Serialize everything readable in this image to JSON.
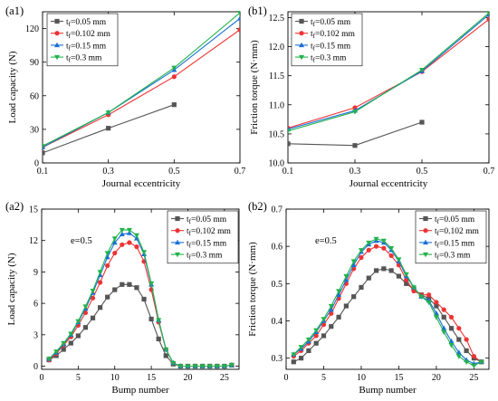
{
  "chart_data": [
    {
      "type": "line",
      "panel_label": "(a1)",
      "xlabel": "Journal eccentricity",
      "ylabel": "Load capacity (N)",
      "xlim": [
        0.1,
        0.7
      ],
      "ylim": [
        0,
        135
      ],
      "xticks": [
        0.1,
        0.3,
        0.5,
        0.7
      ],
      "yticks": [
        0,
        30,
        60,
        90,
        120
      ],
      "legend_position": "top-left",
      "annotation": "",
      "series": [
        {
          "name": "0.05 mm",
          "color": "#555555",
          "marker": "square",
          "x": [
            0.1,
            0.3,
            0.5
          ],
          "y": [
            9,
            31,
            52
          ]
        },
        {
          "name": "0.102 mm",
          "color": "#ee3333",
          "marker": "circle",
          "x": [
            0.1,
            0.3,
            0.5,
            0.7
          ],
          "y": [
            14,
            43,
            77,
            119
          ]
        },
        {
          "name": "0.15 mm",
          "color": "#1a6fd6",
          "marker": "triangle-up",
          "x": [
            0.1,
            0.3,
            0.5,
            0.7
          ],
          "y": [
            14,
            45,
            83,
            129
          ]
        },
        {
          "name": "0.3 mm",
          "color": "#22b24c",
          "marker": "triangle-down",
          "x": [
            0.1,
            0.3,
            0.5,
            0.7
          ],
          "y": [
            15,
            45,
            85,
            134
          ]
        }
      ]
    },
    {
      "type": "line",
      "panel_label": "(b1)",
      "xlabel": "Journal eccentricity",
      "ylabel": "Friction torque (N·mm)",
      "xlim": [
        0.1,
        0.7
      ],
      "ylim": [
        10.0,
        12.6
      ],
      "xticks": [
        0.1,
        0.3,
        0.5,
        0.7
      ],
      "yticks": [
        10.0,
        10.5,
        11.0,
        11.5,
        12.0,
        12.5
      ],
      "legend_position": "top-left",
      "annotation": "",
      "series": [
        {
          "name": "0.05 mm",
          "color": "#555555",
          "marker": "square",
          "x": [
            0.1,
            0.3,
            0.5
          ],
          "y": [
            10.33,
            10.3,
            10.7
          ]
        },
        {
          "name": "0.102 mm",
          "color": "#ee3333",
          "marker": "circle",
          "x": [
            0.1,
            0.3,
            0.5,
            0.7
          ],
          "y": [
            10.6,
            10.95,
            11.57,
            12.47
          ]
        },
        {
          "name": "0.15 mm",
          "color": "#1a6fd6",
          "marker": "triangle-up",
          "x": [
            0.1,
            0.3,
            0.5,
            0.7
          ],
          "y": [
            10.58,
            10.9,
            11.58,
            12.55
          ]
        },
        {
          "name": "0.3 mm",
          "color": "#22b24c",
          "marker": "triangle-down",
          "x": [
            0.1,
            0.3,
            0.5,
            0.7
          ],
          "y": [
            10.55,
            10.88,
            11.6,
            12.58
          ]
        }
      ]
    },
    {
      "type": "line",
      "panel_label": "(a2)",
      "xlabel": "Bump number",
      "ylabel": "Load capacity (N)",
      "xlim": [
        0,
        27
      ],
      "ylim": [
        -0.3,
        15
      ],
      "xticks": [
        0,
        5,
        10,
        15,
        20,
        25
      ],
      "yticks": [
        0,
        3,
        6,
        9,
        12,
        15
      ],
      "legend_position": "top-right",
      "annotation": "e=0.5",
      "x": [
        1,
        2,
        3,
        4,
        5,
        6,
        7,
        8,
        9,
        10,
        11,
        12,
        13,
        14,
        15,
        16,
        17,
        18,
        19,
        20,
        21,
        22,
        23,
        24,
        25,
        26
      ],
      "series": [
        {
          "name": "0.05 mm",
          "color": "#555555",
          "marker": "square",
          "y": [
            0.6,
            1.0,
            1.6,
            2.2,
            2.9,
            3.7,
            4.6,
            5.6,
            6.6,
            7.3,
            7.8,
            7.8,
            7.5,
            6.4,
            4.5,
            2.6,
            1.0,
            0.2,
            0.0,
            0.0,
            0.0,
            0.0,
            0.0,
            0.0,
            0.0,
            0.1
          ]
        },
        {
          "name": "0.102 mm",
          "color": "#ee3333",
          "marker": "circle",
          "y": [
            0.6,
            1.2,
            2.0,
            2.8,
            3.9,
            5.1,
            6.5,
            8.0,
            9.6,
            10.8,
            11.6,
            11.8,
            11.4,
            10.0,
            7.3,
            4.2,
            1.6,
            0.3,
            0.0,
            0.0,
            0.0,
            0.0,
            0.0,
            0.0,
            0.0,
            0.1
          ]
        },
        {
          "name": "0.15 mm",
          "color": "#1a6fd6",
          "marker": "triangle-up",
          "y": [
            0.7,
            1.3,
            2.1,
            3.0,
            4.2,
            5.5,
            7.0,
            8.7,
            10.4,
            11.8,
            12.6,
            12.7,
            12.2,
            10.7,
            7.8,
            4.4,
            1.6,
            0.3,
            0.0,
            0.0,
            0.0,
            0.0,
            0.0,
            0.0,
            0.0,
            0.1
          ]
        },
        {
          "name": "0.3 mm",
          "color": "#22b24c",
          "marker": "triangle-down",
          "y": [
            0.7,
            1.4,
            2.2,
            3.1,
            4.3,
            5.7,
            7.2,
            9.0,
            10.8,
            12.2,
            13.0,
            13.0,
            12.5,
            10.9,
            7.9,
            4.4,
            1.6,
            0.3,
            0.0,
            0.0,
            0.0,
            0.0,
            0.0,
            0.0,
            0.0,
            0.1
          ]
        }
      ]
    },
    {
      "type": "line",
      "panel_label": "(b2)",
      "xlabel": "Bump number",
      "ylabel": "Friction torque (N·mm)",
      "xlim": [
        0,
        27
      ],
      "ylim": [
        0.27,
        0.7
      ],
      "xticks": [
        0,
        5,
        10,
        15,
        20,
        25
      ],
      "yticks": [
        0.3,
        0.4,
        0.5,
        0.6,
        0.7
      ],
      "legend_position": "top-right",
      "annotation": "e=0.5",
      "x": [
        1,
        2,
        3,
        4,
        5,
        6,
        7,
        8,
        9,
        10,
        11,
        12,
        13,
        14,
        15,
        16,
        17,
        18,
        19,
        20,
        21,
        22,
        23,
        24,
        25,
        26
      ],
      "series": [
        {
          "name": "0.05 mm",
          "color": "#555555",
          "marker": "square",
          "y": [
            0.29,
            0.3,
            0.32,
            0.34,
            0.36,
            0.385,
            0.41,
            0.44,
            0.465,
            0.49,
            0.515,
            0.535,
            0.54,
            0.535,
            0.52,
            0.5,
            0.485,
            0.47,
            0.46,
            0.44,
            0.41,
            0.38,
            0.35,
            0.32,
            0.3,
            0.29
          ]
        },
        {
          "name": "0.102 mm",
          "color": "#ee3333",
          "marker": "circle",
          "y": [
            0.305,
            0.32,
            0.34,
            0.36,
            0.39,
            0.42,
            0.46,
            0.5,
            0.54,
            0.57,
            0.59,
            0.6,
            0.595,
            0.575,
            0.55,
            0.51,
            0.48,
            0.47,
            0.47,
            0.45,
            0.43,
            0.41,
            0.38,
            0.35,
            0.305,
            0.29
          ]
        },
        {
          "name": "0.15 mm",
          "color": "#1a6fd6",
          "marker": "triangle-up",
          "y": [
            0.31,
            0.325,
            0.345,
            0.37,
            0.4,
            0.43,
            0.47,
            0.51,
            0.55,
            0.585,
            0.605,
            0.615,
            0.61,
            0.59,
            0.56,
            0.52,
            0.49,
            0.465,
            0.455,
            0.42,
            0.38,
            0.345,
            0.315,
            0.295,
            0.285,
            0.29
          ]
        },
        {
          "name": "0.3 mm",
          "color": "#22b24c",
          "marker": "triangle-down",
          "y": [
            0.31,
            0.33,
            0.35,
            0.375,
            0.405,
            0.44,
            0.48,
            0.52,
            0.56,
            0.59,
            0.61,
            0.62,
            0.615,
            0.595,
            0.565,
            0.525,
            0.49,
            0.465,
            0.45,
            0.41,
            0.37,
            0.335,
            0.305,
            0.29,
            0.28,
            0.29
          ]
        }
      ]
    }
  ]
}
